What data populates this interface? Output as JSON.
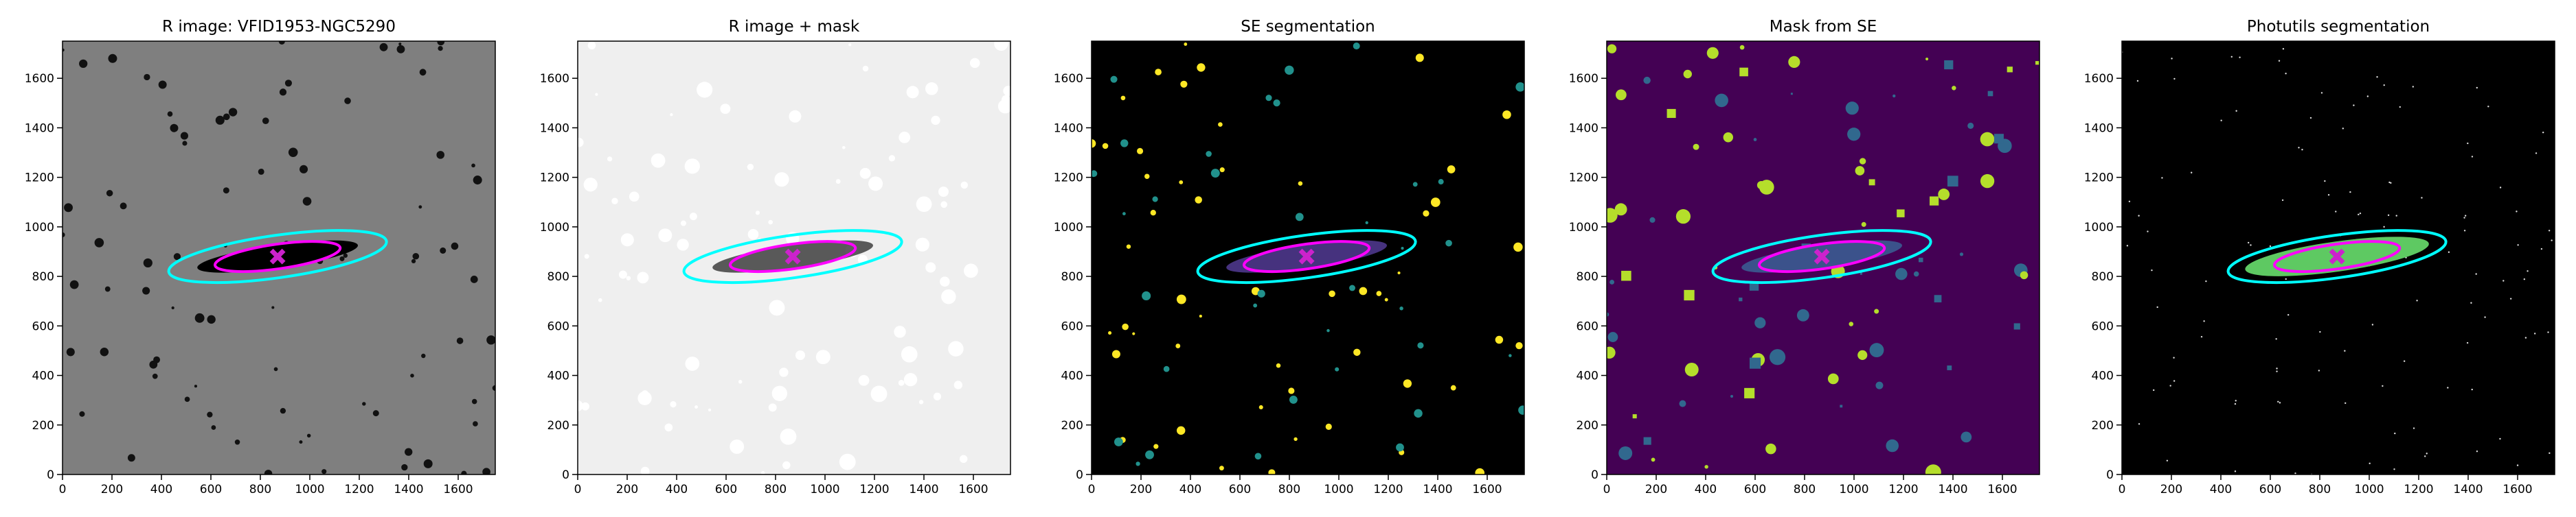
{
  "chart_data": [
    {
      "type": "image",
      "title": "R image: VFID1953-NGC5290",
      "xlim": [
        0,
        1750
      ],
      "ylim": [
        0,
        1750
      ],
      "xticks": [
        0,
        200,
        400,
        600,
        800,
        1000,
        1200,
        1400,
        1600
      ],
      "yticks": [
        0,
        200,
        400,
        600,
        800,
        1000,
        1200,
        1400,
        1600
      ]
    },
    {
      "type": "image",
      "title": "R image + mask",
      "xlim": [
        0,
        1750
      ],
      "ylim": [
        0,
        1750
      ],
      "xticks": [
        0,
        200,
        400,
        600,
        800,
        1000,
        1200,
        1400,
        1600
      ],
      "yticks": [
        0,
        200,
        400,
        600,
        800,
        1000,
        1200,
        1400,
        1600
      ]
    },
    {
      "type": "image",
      "title": "SE segmentation",
      "xlim": [
        0,
        1750
      ],
      "ylim": [
        0,
        1750
      ],
      "xticks": [
        0,
        200,
        400,
        600,
        800,
        1000,
        1200,
        1400,
        1600
      ],
      "yticks": [
        0,
        200,
        400,
        600,
        800,
        1000,
        1200,
        1400,
        1600
      ]
    },
    {
      "type": "image",
      "title": "Mask from SE",
      "xlim": [
        0,
        1750
      ],
      "ylim": [
        0,
        1750
      ],
      "xticks": [
        0,
        200,
        400,
        600,
        800,
        1000,
        1200,
        1400,
        1600
      ],
      "yticks": [
        0,
        200,
        400,
        600,
        800,
        1000,
        1200,
        1400,
        1600
      ]
    },
    {
      "type": "image",
      "title": "Photutils segmentation",
      "xlim": [
        0,
        1750
      ],
      "ylim": [
        0,
        1750
      ],
      "xticks": [
        0,
        200,
        400,
        600,
        800,
        1000,
        1200,
        1400,
        1600
      ],
      "yticks": [
        0,
        200,
        400,
        600,
        800,
        1000,
        1200,
        1400,
        1600
      ]
    }
  ]
}
